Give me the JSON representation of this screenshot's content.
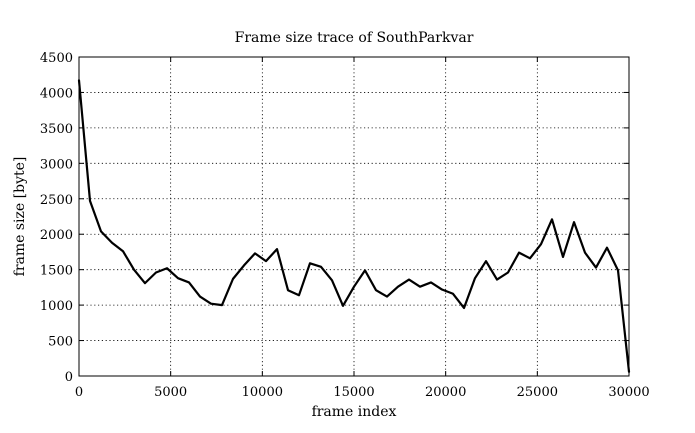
{
  "chart_data": {
    "type": "line",
    "title": "Frame size trace of SouthParkvar",
    "xlabel": "frame index",
    "ylabel": "frame size [byte]",
    "xlim": [
      0,
      30000
    ],
    "ylim": [
      0,
      4500
    ],
    "xticks": [
      0,
      5000,
      10000,
      15000,
      20000,
      25000,
      30000
    ],
    "yticks": [
      0,
      500,
      1000,
      1500,
      2000,
      2500,
      3000,
      3500,
      4000,
      4500
    ],
    "grid": true,
    "grid_style": "dotted",
    "legend": "none",
    "line_color": "#000000",
    "series": [
      {
        "x": [
          0,
          600,
          1200,
          1800,
          2400,
          3000,
          3600,
          4200,
          4800,
          5400,
          6000,
          6600,
          7200,
          7800,
          8400,
          9000,
          9600,
          10200,
          10800,
          11400,
          12000,
          12600,
          13200,
          13800,
          14400,
          15000,
          15600,
          16200,
          16800,
          17400,
          18000,
          18600,
          19200,
          19800,
          20400,
          21000,
          21600,
          22200,
          22800,
          23400,
          24000,
          24600,
          25200,
          25800,
          26400,
          27000,
          27600,
          28200,
          28800,
          29400,
          30000
        ],
        "values": [
          4170,
          2470,
          2040,
          1880,
          1760,
          1500,
          1310,
          1460,
          1520,
          1380,
          1320,
          1120,
          1020,
          1000,
          1370,
          1560,
          1730,
          1620,
          1790,
          1210,
          1140,
          1590,
          1540,
          1350,
          990,
          1260,
          1490,
          1210,
          1120,
          1260,
          1360,
          1260,
          1320,
          1220,
          1160,
          960,
          1380,
          1620,
          1360,
          1460,
          1740,
          1660,
          1860,
          2210,
          1680,
          2170,
          1740,
          1530,
          1810,
          1490,
          60
        ]
      }
    ]
  }
}
